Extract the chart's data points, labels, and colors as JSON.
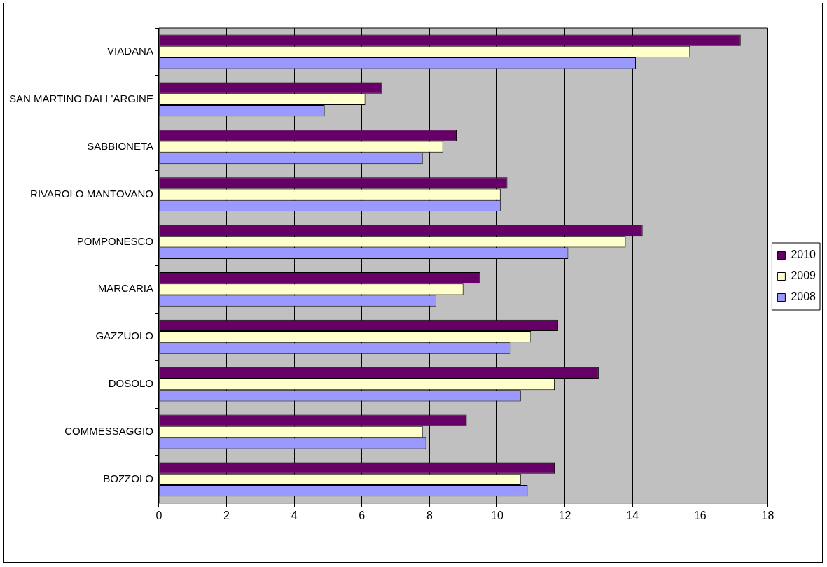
{
  "chart_data": {
    "type": "bar",
    "orientation": "horizontal",
    "categories": [
      "VIADANA",
      "SAN MARTINO DALL'ARGINE",
      "SABBIONETA",
      "RIVAROLO MANTOVANO",
      "POMPONESCO",
      "MARCARIA",
      "GAZZUOLO",
      "DOSOLO",
      "COMMESSAGGIO",
      "BOZZOLO"
    ],
    "series": [
      {
        "name": "2010",
        "color": "#660066",
        "values": [
          17.2,
          6.6,
          8.8,
          10.3,
          14.3,
          9.5,
          11.8,
          13.0,
          9.1,
          11.7
        ]
      },
      {
        "name": "2009",
        "color": "#ffffcc",
        "values": [
          15.7,
          6.1,
          8.4,
          10.1,
          13.8,
          9.0,
          11.0,
          11.7,
          7.8,
          10.7
        ]
      },
      {
        "name": "2008",
        "color": "#9999ff",
        "values": [
          14.1,
          4.9,
          7.8,
          10.1,
          12.1,
          8.2,
          10.4,
          10.7,
          7.9,
          10.9
        ]
      }
    ],
    "xlim": [
      0,
      18
    ],
    "xticks": [
      0,
      2,
      4,
      6,
      8,
      10,
      12,
      14,
      16,
      18
    ],
    "grid": "x",
    "legend": "right"
  }
}
